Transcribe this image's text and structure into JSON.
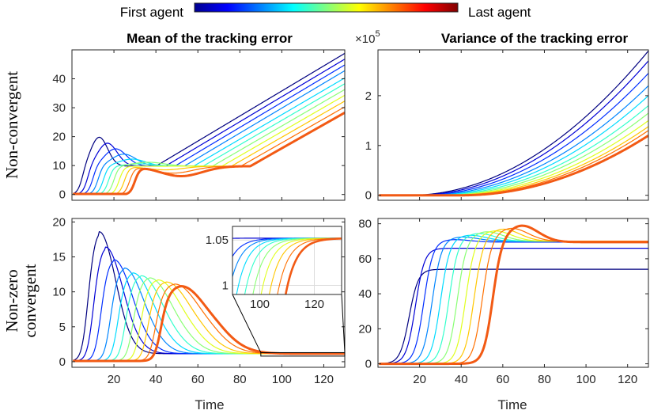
{
  "legend": {
    "first_label": "First agent",
    "last_label": "Last agent",
    "colormap": "jet"
  },
  "row_labels": {
    "top": "Non-convergent",
    "bottom_line1": "Non-zero",
    "bottom_line2": "convergent"
  },
  "exponent_label": {
    "base": "×10",
    "power": "5"
  },
  "colors": {
    "highlight": "#f25a14",
    "axis": "#262626",
    "grid": "#dcdcdc"
  },
  "chart_data": [
    {
      "id": "mean_nonconv",
      "type": "line",
      "title": "Mean of the tracking error",
      "xlabel": "",
      "ylabel": "",
      "xlim": [
        0,
        130
      ],
      "ylim": [
        -2,
        50
      ],
      "xticks": [
        20,
        40,
        60,
        80,
        100,
        120
      ],
      "yticks": [
        0,
        10,
        20,
        30,
        40
      ],
      "show_xtick_labels": false,
      "agents": 11,
      "series_params": [
        {
          "agent": 1,
          "onset": 5,
          "peak": 19.5,
          "peak_t": 13,
          "slope": 0.44
        },
        {
          "agent": 11,
          "onset": 30,
          "peak": 10.5,
          "peak_t": 52,
          "end_value": 28.5
        }
      ],
      "end_values_at_130": [
        49,
        47,
        45,
        43,
        40.5,
        38.5,
        36.5,
        34.5,
        32.5,
        30.5,
        28.5
      ]
    },
    {
      "id": "var_nonconv",
      "type": "line",
      "title": "Variance of the tracking error",
      "xlabel": "",
      "ylabel": "",
      "xlim": [
        0,
        130
      ],
      "ylim": [
        -0.1,
        2.92
      ],
      "xticks": [
        20,
        40,
        60,
        80,
        100,
        120
      ],
      "yticks": [
        0,
        1,
        2
      ],
      "y_scale_exponent": 5,
      "show_xtick_labels": false,
      "agents": 11,
      "end_values_at_130": [
        2.9,
        2.7,
        2.45,
        2.2,
        2.0,
        1.8,
        1.65,
        1.5,
        1.38,
        1.3,
        1.2
      ]
    },
    {
      "id": "mean_conv",
      "type": "line",
      "title": "",
      "xlabel": "Time",
      "ylabel": "",
      "xlim": [
        0,
        130
      ],
      "ylim": [
        -0.8,
        20.5
      ],
      "xticks": [
        20,
        40,
        60,
        80,
        100,
        120
      ],
      "yticks": [
        0,
        5,
        10,
        15,
        20
      ],
      "agents": 11,
      "peaks": [
        18.5,
        16.3,
        14.5,
        13.3,
        12.6,
        12.2,
        11.9,
        11.6,
        11.3,
        11.0,
        10.7
      ],
      "peak_times": [
        13,
        16,
        20,
        25,
        29,
        33,
        37,
        41,
        45,
        49,
        52
      ],
      "final_value": 1.05,
      "inset": {
        "xlim": [
          90,
          130
        ],
        "ylim": [
          0.99,
          1.065
        ],
        "xticks": [
          100,
          120
        ],
        "yticks": [
          1,
          1.05
        ],
        "ytick_labels": [
          "1",
          "1.05"
        ]
      }
    },
    {
      "id": "var_conv",
      "type": "line",
      "title": "",
      "xlabel": "Time",
      "ylabel": "",
      "xlim": [
        0,
        130
      ],
      "ylim": [
        -2,
        83
      ],
      "xticks": [
        20,
        40,
        60,
        80,
        100,
        120
      ],
      "yticks": [
        0,
        20,
        40,
        60,
        80
      ],
      "agents": 11,
      "final_values": [
        54,
        66,
        69.5,
        70,
        70,
        70,
        70,
        70,
        70,
        70,
        69.5
      ],
      "peak_values": [
        54,
        66,
        71,
        72.5,
        73.5,
        74.5,
        75.5,
        76,
        77,
        77.5,
        79
      ],
      "rise_times": [
        15,
        18,
        22,
        26,
        30,
        34,
        38,
        42,
        46,
        50,
        55
      ]
    }
  ]
}
